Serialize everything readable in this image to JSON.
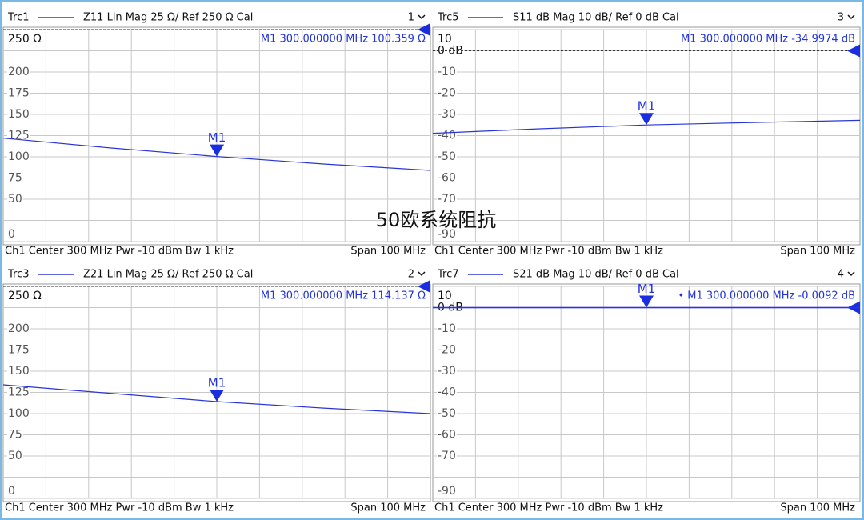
{
  "chart_data": [
    {
      "type": "line",
      "header": "Z11   Lin Mag   25 Ω/ Ref 250 Ω   Cal",
      "window": "1",
      "x": [
        250,
        275,
        300,
        325,
        350
      ],
      "xlim": [
        250,
        350
      ],
      "ylim": [
        0,
        250
      ],
      "yticks": [
        {
          "value": 250,
          "label": "250 Ω"
        },
        200,
        175,
        150,
        125,
        100,
        75,
        50,
        0
      ],
      "reference": 250,
      "reference_style": "dashed",
      "series": [
        {
          "name": "Trc1",
          "color": "#2a35d8",
          "values": [
            122,
            110.5,
            100.359,
            91.5,
            84
          ]
        }
      ],
      "marker": {
        "label": "M1",
        "x": 300,
        "readout": "M1  300.000000  MHz  100.359  Ω"
      },
      "footer_left": "Ch1  Center   300 MHz   Pwr   -10 dBm   Bw   1 kHz",
      "footer_right": "Span   100 MHz"
    },
    {
      "type": "line",
      "header": "S11   dB Mag   10 dB/ Ref 0 dB   Cal",
      "window": "3",
      "x": [
        250,
        275,
        300,
        325,
        350
      ],
      "xlim": [
        250,
        350
      ],
      "ylim": [
        -90,
        10
      ],
      "yticks": [
        10,
        {
          "value": 0,
          "label": "0 dB"
        },
        -10,
        -20,
        -30,
        -40,
        -50,
        -60,
        -70,
        -90
      ],
      "reference": 0,
      "reference_style": "dashed",
      "series": [
        {
          "name": "Trc5",
          "color": "#2a35d8",
          "values": [
            -38.9,
            -36.8,
            -34.9974,
            -33.8,
            -32.8
          ]
        }
      ],
      "marker": {
        "label": "M1",
        "x": 300,
        "readout": "M1  300.000000  MHz  -34.9974  dB"
      },
      "footer_left": "Ch1  Center   300 MHz   Pwr   -10 dBm   Bw   1 kHz",
      "footer_right": "Span   100 MHz"
    },
    {
      "type": "line",
      "header": "Z21   Lin Mag   25 Ω/ Ref 250 Ω   Cal",
      "window": "2",
      "x": [
        250,
        275,
        300,
        325,
        350
      ],
      "xlim": [
        250,
        350
      ],
      "ylim": [
        0,
        250
      ],
      "yticks": [
        {
          "value": 250,
          "label": "250 Ω"
        },
        200,
        175,
        150,
        125,
        100,
        75,
        50,
        0
      ],
      "reference": 250,
      "reference_style": "dashed",
      "series": [
        {
          "name": "Trc3",
          "color": "#2a35d8",
          "values": [
            134,
            124,
            114.137,
            106.5,
            100
          ]
        }
      ],
      "marker": {
        "label": "M1",
        "x": 300,
        "readout": "M1  300.000000  MHz  114.137  Ω"
      },
      "footer_left": "Ch1  Center   300 MHz   Pwr   -10 dBm   Bw   1 kHz",
      "footer_right": "Span   100 MHz"
    },
    {
      "type": "line",
      "header": "S21   dB Mag   10 dB/ Ref 0 dB   Cal",
      "window": "4",
      "x": [
        250,
        275,
        300,
        325,
        350
      ],
      "xlim": [
        250,
        350
      ],
      "ylim": [
        -90,
        10
      ],
      "yticks": [
        10,
        {
          "value": 0,
          "label": "0 dB"
        },
        -10,
        -20,
        -30,
        -40,
        -50,
        -60,
        -70,
        -90
      ],
      "reference": 0,
      "reference_style": "solid",
      "series": [
        {
          "name": "Trc7",
          "color": "#2a35d8",
          "values": [
            -0.01,
            -0.01,
            -0.0092,
            -0.01,
            -0.01
          ]
        }
      ],
      "marker": {
        "label": "M1",
        "x": 300,
        "readout": "• M1  300.000000  MHz  -0.0092  dB"
      },
      "footer_left": "Ch1  Center   300 MHz   Pwr   -10 dBm   Bw   1 kHz",
      "footer_right": "Span   100 MHz"
    }
  ],
  "annotation": "50欧系统阻抗"
}
